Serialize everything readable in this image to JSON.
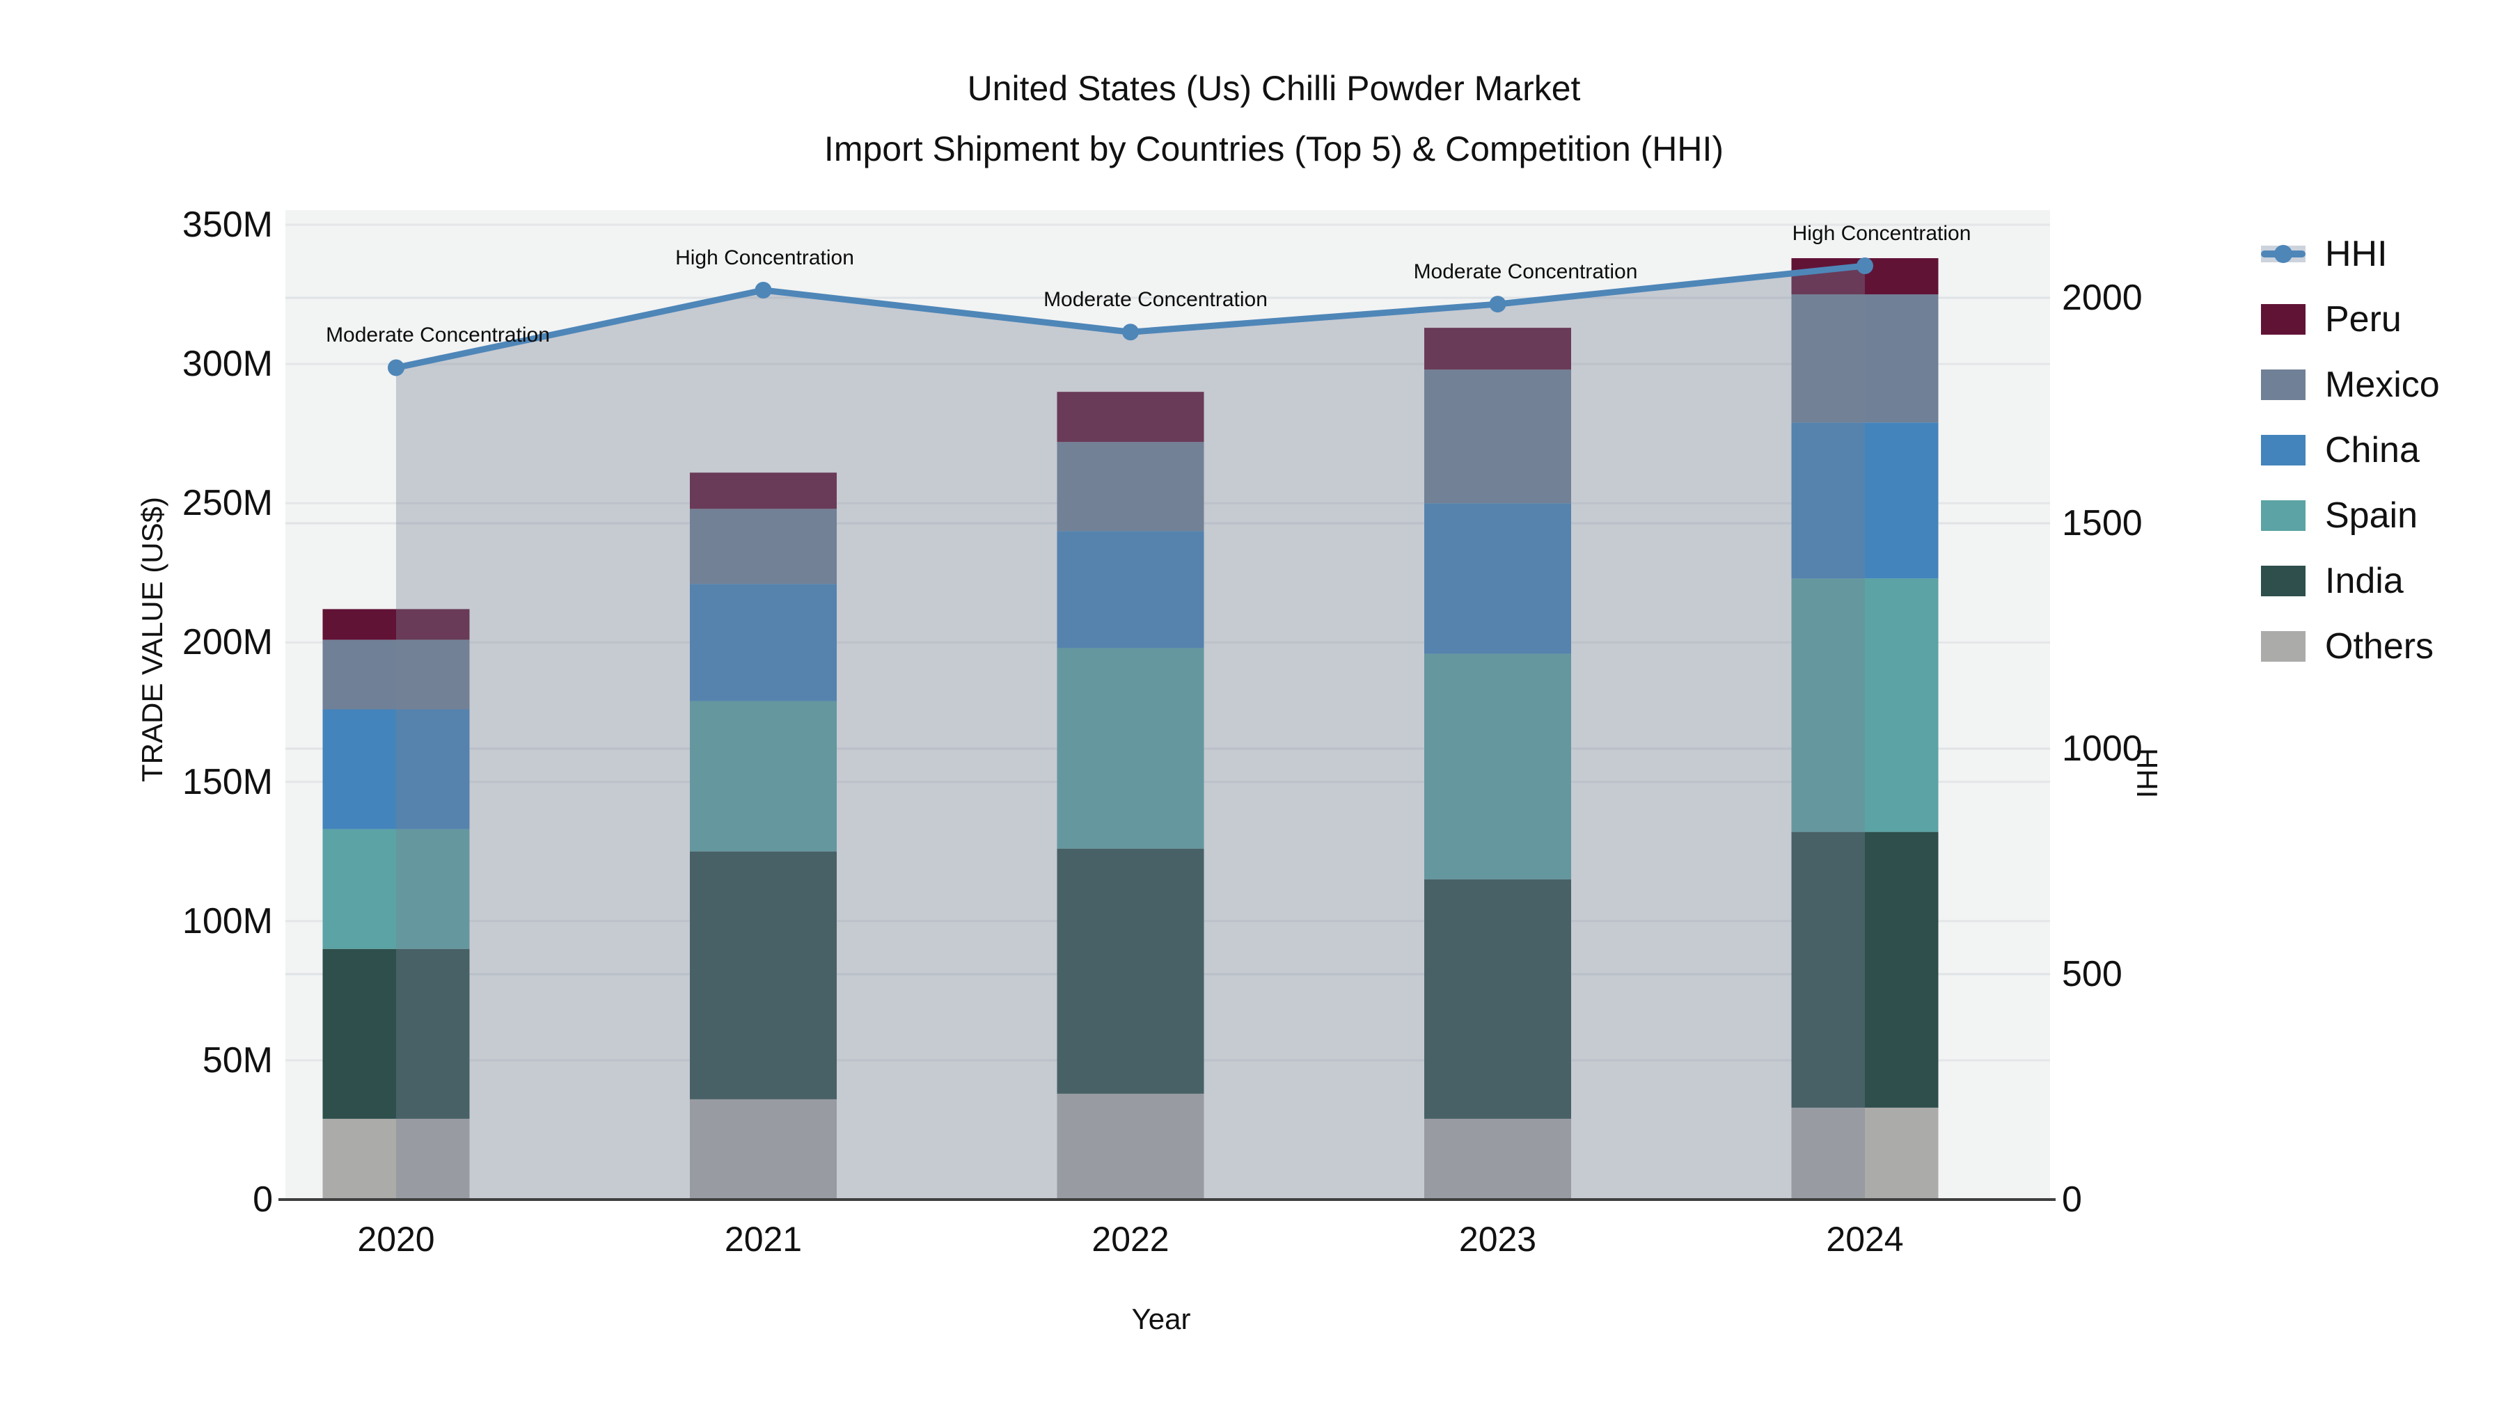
{
  "title": {
    "line1": "United States (Us) Chilli Powder Market",
    "line2": "Import Shipment by Countries (Top 5) & Competition (HHI)"
  },
  "chart_data": {
    "type": "combo: stacked bar + line (area)",
    "categories": [
      "2020",
      "2021",
      "2022",
      "2023",
      "2024"
    ],
    "bar_value_unit": "M US$ (trade value)",
    "series": [
      {
        "name": "Others",
        "color": "#ababa9",
        "values": [
          29,
          36,
          38,
          29,
          33
        ]
      },
      {
        "name": "India",
        "color": "#2e4f4c",
        "values": [
          61,
          89,
          88,
          86,
          99
        ]
      },
      {
        "name": "Spain",
        "color": "#5ba3a4",
        "values": [
          43,
          54,
          72,
          81,
          91
        ]
      },
      {
        "name": "China",
        "color": "#4384bc",
        "values": [
          43,
          42,
          42,
          54,
          56
        ]
      },
      {
        "name": "Mexico",
        "color": "#708096",
        "values": [
          25,
          27,
          32,
          48,
          46
        ]
      },
      {
        "name": "Peru",
        "color": "#611336",
        "values": [
          11,
          13,
          18,
          15,
          13
        ]
      }
    ],
    "bar_totals": [
      212,
      261,
      290,
      313,
      338
    ],
    "line_series": {
      "name": "HHI",
      "color": "#4e86b8",
      "area_fill": "rgba(120,130,150,0.36)",
      "values": [
        1845,
        2017,
        1924,
        1986,
        2071
      ],
      "annotations": [
        "Moderate Concentration",
        "High Concentration",
        "Moderate Concentration",
        "Moderate Concentration",
        "High Concentration"
      ]
    },
    "y_left": {
      "title": "TRADE VALUE (US$)",
      "ticks": [
        "0",
        "50M",
        "100M",
        "150M",
        "200M",
        "250M",
        "300M",
        "350M"
      ],
      "tick_values": [
        0,
        50,
        100,
        150,
        200,
        250,
        300,
        350
      ],
      "range": [
        0,
        355
      ]
    },
    "y_right": {
      "title": "HHI",
      "ticks": [
        "0",
        "500",
        "1000",
        "1500",
        "2000"
      ],
      "tick_values": [
        0,
        500,
        1000,
        1500,
        2000
      ],
      "range": [
        0,
        2195
      ]
    },
    "x": {
      "title": "Year"
    },
    "grid": true,
    "legend_position": "right",
    "legend_order": [
      "HHI",
      "Peru",
      "Mexico",
      "China",
      "Spain",
      "India",
      "Others"
    ],
    "plot_background": "#f2f3f3"
  }
}
